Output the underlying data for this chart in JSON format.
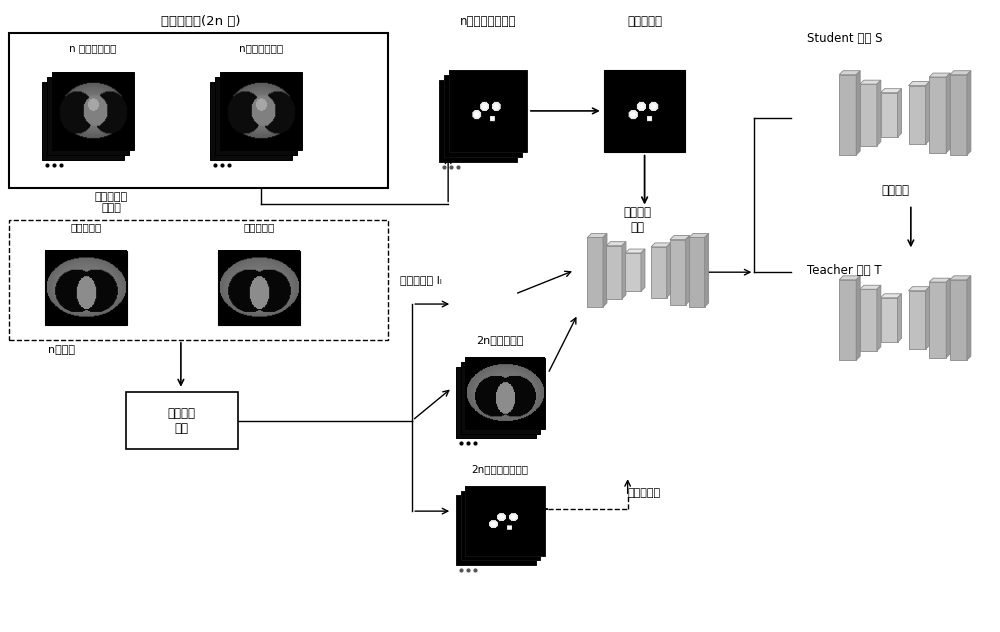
{
  "bg_color": "#ffffff",
  "labels": {
    "batch_title": "一批次图像(2n 张)",
    "unlabeled": "n 张无标注图像",
    "labeled_ann": "n张有标注图像",
    "mask_title": "n张标注图像掩码",
    "full_sup_loss": "全监督损失",
    "repair_module": "修复网络\n模块",
    "uncertainty_module": "不确定性评\n估模块",
    "high_conf": "高可信图像",
    "low_conf": "低可信图像",
    "n_pairs": "n对图像",
    "gen_module": "图像生成\n模块",
    "labeled_img": "有标注图像 Iₗ",
    "mixed_2n": "2n张混合图像",
    "mixed_mask": "2n张混合图像掩码",
    "semi_loss": "半监督损失",
    "student_model": "Student 模型 S",
    "sliding_avg": "滑动平均",
    "teacher_model": "Teacher 模型 T"
  }
}
